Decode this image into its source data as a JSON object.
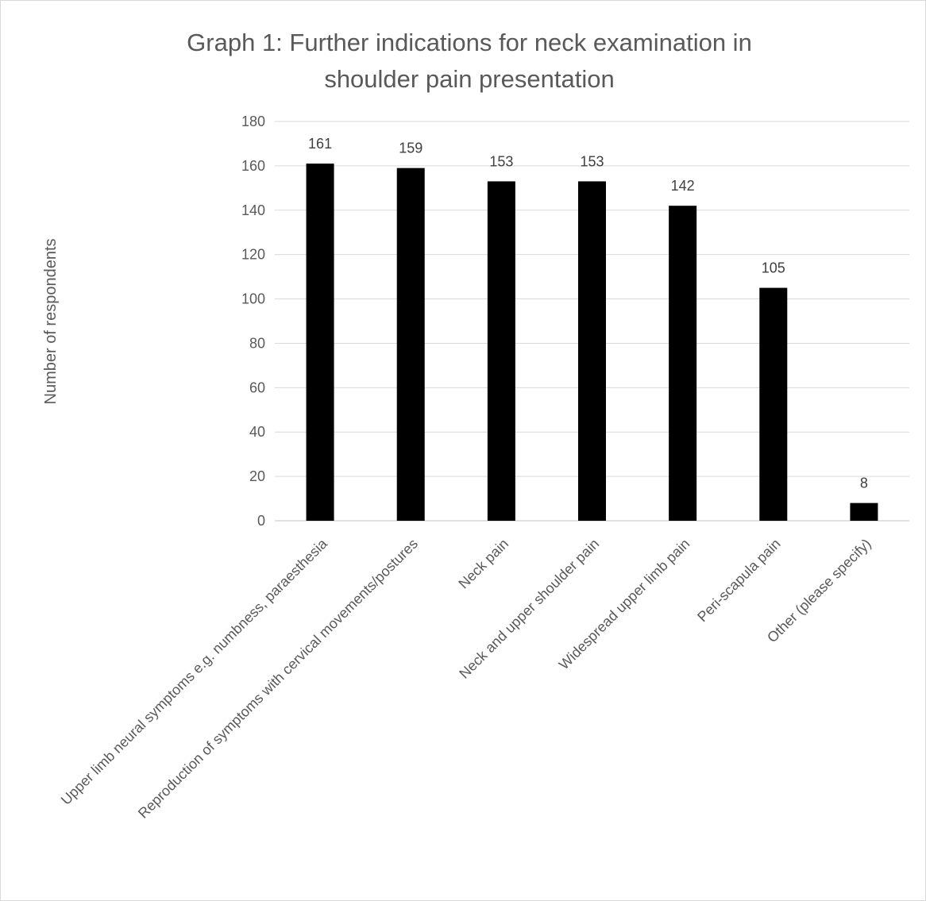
{
  "chart_data": {
    "type": "bar",
    "title_lines": [
      "Graph 1: Further indications for neck examination in",
      "shoulder pain presentation"
    ],
    "xlabel": "",
    "ylabel": "Number of respondents",
    "ylim": [
      0,
      180
    ],
    "ytick_step": 20,
    "grid": true,
    "legend": "none",
    "bar_color": "#000000",
    "gridline_color": "#d9d9d9",
    "categories": [
      "Upper limb neural symptoms e.g. numbness, paraesthesia",
      "Reproduction of symptoms with cervical movements/postures",
      "Neck pain",
      "Neck and upper shoulder pain",
      "Widespread upper limb pain",
      "Peri-scapula pain",
      "Other (please specify)"
    ],
    "values": [
      161,
      159,
      153,
      153,
      142,
      105,
      8
    ],
    "data_labels": [
      "161",
      "159",
      "153",
      "153",
      "142",
      "105",
      "8"
    ]
  }
}
